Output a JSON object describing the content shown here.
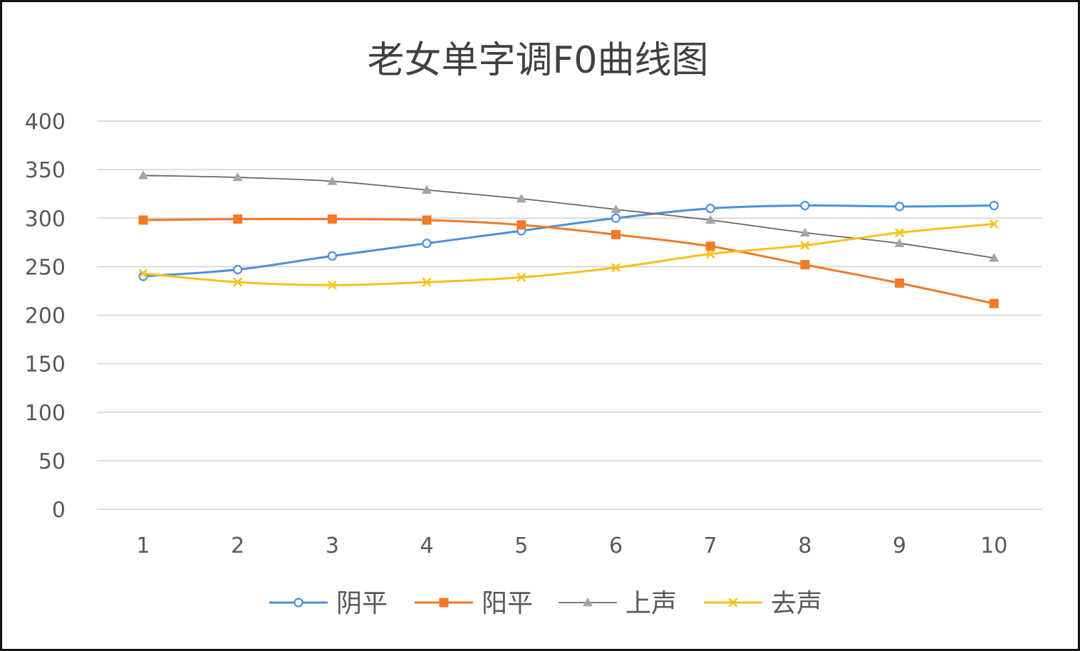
{
  "chart_data": {
    "type": "line",
    "title": "老女单字调F0曲线图",
    "categories": [
      "1",
      "2",
      "3",
      "4",
      "5",
      "6",
      "7",
      "8",
      "9",
      "10"
    ],
    "ylim": [
      0,
      400
    ],
    "yticks": [
      "0",
      "50",
      "100",
      "150",
      "200",
      "250",
      "300",
      "350",
      "400"
    ],
    "grid": true,
    "legend_position": "bottom",
    "series": [
      {
        "name": "阴平",
        "color": "#4a90d9",
        "marker": "circle",
        "values": [
          240,
          247,
          261,
          274,
          287,
          300,
          310,
          313,
          312,
          313
        ]
      },
      {
        "name": "阳平",
        "color": "#f07a28",
        "marker": "square",
        "values": [
          298,
          299,
          299,
          298,
          293,
          283,
          271,
          252,
          233,
          212
        ]
      },
      {
        "name": "上声",
        "color": "#a8a3a3",
        "line_color": "#6e6464",
        "marker": "triangle",
        "values": [
          344,
          342,
          338,
          329,
          320,
          309,
          298,
          285,
          274,
          259
        ]
      },
      {
        "name": "去声",
        "color": "#f9c01a",
        "marker": "x",
        "values": [
          243,
          234,
          231,
          234,
          239,
          249,
          263,
          272,
          285,
          294
        ]
      }
    ]
  }
}
